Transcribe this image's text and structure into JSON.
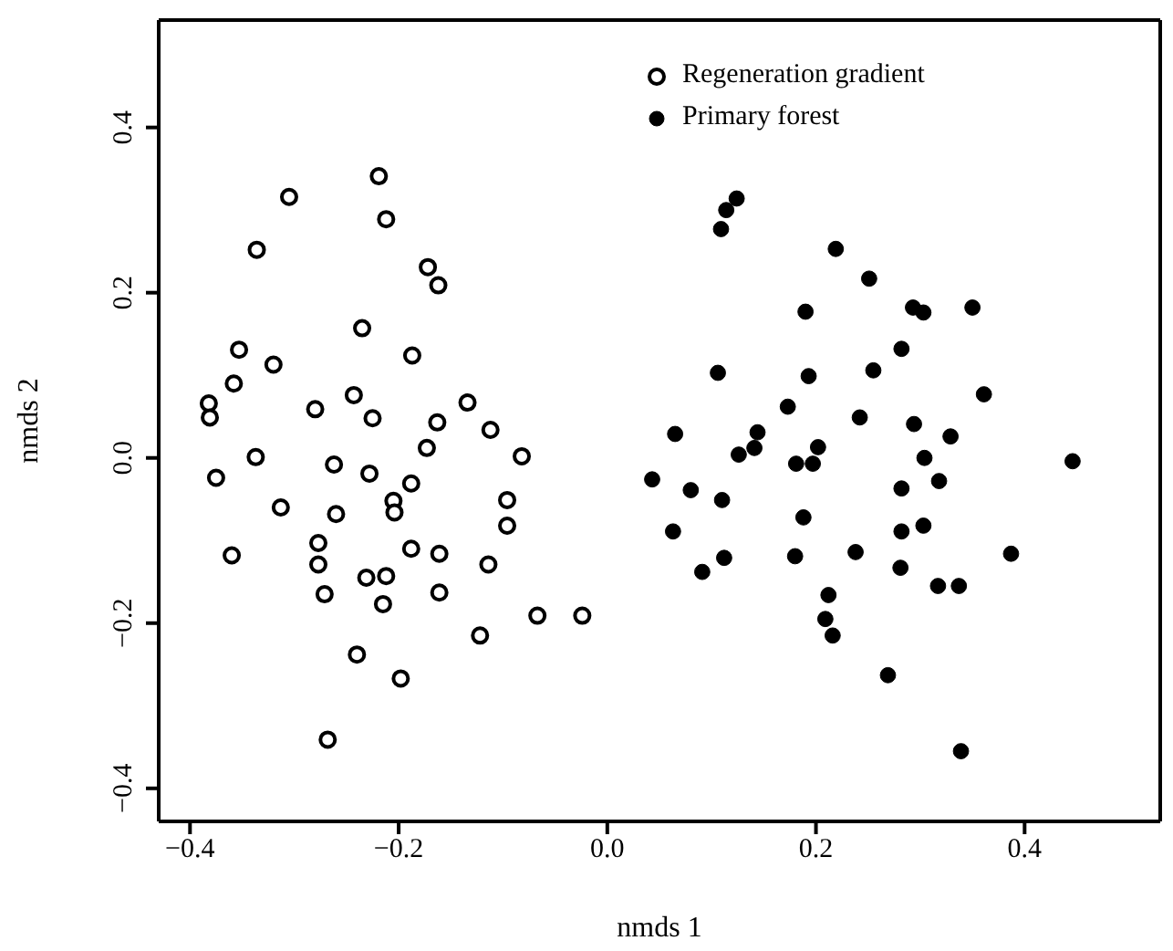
{
  "chart_data": {
    "type": "scatter",
    "xlabel": "nmds 1",
    "ylabel": "nmds 2",
    "xlim": [
      -0.43,
      0.53
    ],
    "ylim": [
      -0.44,
      0.53
    ],
    "xticks": [
      {
        "value": -0.4,
        "label": "−0.4"
      },
      {
        "value": -0.2,
        "label": "−0.2"
      },
      {
        "value": 0,
        "label": "0.0"
      },
      0.2,
      0.4
    ],
    "yticks": [
      {
        "value": -0.4,
        "label": "−0.4"
      },
      {
        "value": -0.2,
        "label": "−0.2"
      },
      {
        "value": 0,
        "label": "0.0"
      },
      0.2,
      0.4
    ],
    "legend": "top right",
    "marker": "circle",
    "series": [
      {
        "name": "Regeneration gradient",
        "color": "#000000",
        "x": [
          -0.219,
          -0.305,
          -0.212,
          -0.336,
          -0.172,
          -0.162,
          -0.235,
          -0.353,
          -0.32,
          -0.187,
          -0.358,
          -0.382,
          -0.381,
          -0.243,
          -0.28,
          -0.225,
          -0.134,
          -0.163,
          -0.112,
          -0.173,
          -0.082,
          -0.337,
          -0.375,
          -0.262,
          -0.228,
          -0.188,
          -0.205,
          -0.204,
          -0.096,
          -0.313,
          -0.26,
          -0.096,
          -0.277,
          -0.36,
          -0.188,
          -0.161,
          -0.277,
          -0.114,
          -0.231,
          -0.212,
          -0.271,
          -0.161,
          -0.215,
          -0.067,
          -0.024,
          -0.122,
          -0.24,
          -0.198,
          -0.268
        ],
        "values": [
          0.341,
          0.316,
          0.289,
          0.252,
          0.231,
          0.209,
          0.157,
          0.131,
          0.113,
          0.124,
          0.09,
          0.066,
          0.049,
          0.076,
          0.059,
          0.048,
          0.067,
          0.043,
          0.034,
          0.012,
          0.002,
          0.001,
          -0.024,
          -0.008,
          -0.019,
          -0.031,
          -0.052,
          -0.066,
          -0.051,
          -0.06,
          -0.068,
          -0.082,
          -0.103,
          -0.118,
          -0.11,
          -0.116,
          -0.129,
          -0.129,
          -0.145,
          -0.143,
          -0.165,
          -0.163,
          -0.177,
          -0.191,
          -0.191,
          -0.215,
          -0.238,
          -0.267,
          -0.341
        ]
      },
      {
        "name": "Primary forest",
        "color": "#000000",
        "x": [
          0.124,
          0.114,
          0.109,
          0.219,
          0.251,
          0.19,
          0.293,
          0.303,
          0.35,
          0.282,
          0.106,
          0.193,
          0.255,
          0.361,
          0.173,
          0.242,
          0.294,
          0.329,
          0.065,
          0.144,
          0.141,
          0.126,
          0.202,
          0.181,
          0.197,
          0.304,
          0.446,
          0.043,
          0.08,
          0.11,
          0.282,
          0.318,
          0.188,
          0.063,
          0.282,
          0.303,
          0.112,
          0.091,
          0.18,
          0.238,
          0.281,
          0.387,
          0.317,
          0.337,
          0.212,
          0.209,
          0.216,
          0.269,
          0.339
        ],
        "values": [
          0.314,
          0.3,
          0.277,
          0.253,
          0.217,
          0.177,
          0.182,
          0.176,
          0.182,
          0.132,
          0.103,
          0.099,
          0.106,
          0.077,
          0.062,
          0.049,
          0.041,
          0.026,
          0.029,
          0.031,
          0.012,
          0.004,
          0.013,
          -0.007,
          -0.007,
          0,
          -0.004,
          -0.026,
          -0.039,
          -0.051,
          -0.037,
          -0.028,
          -0.072,
          -0.089,
          -0.089,
          -0.082,
          -0.121,
          -0.138,
          -0.119,
          -0.114,
          -0.133,
          -0.116,
          -0.155,
          -0.155,
          -0.166,
          -0.195,
          -0.215,
          -0.263,
          -0.355
        ]
      }
    ]
  }
}
